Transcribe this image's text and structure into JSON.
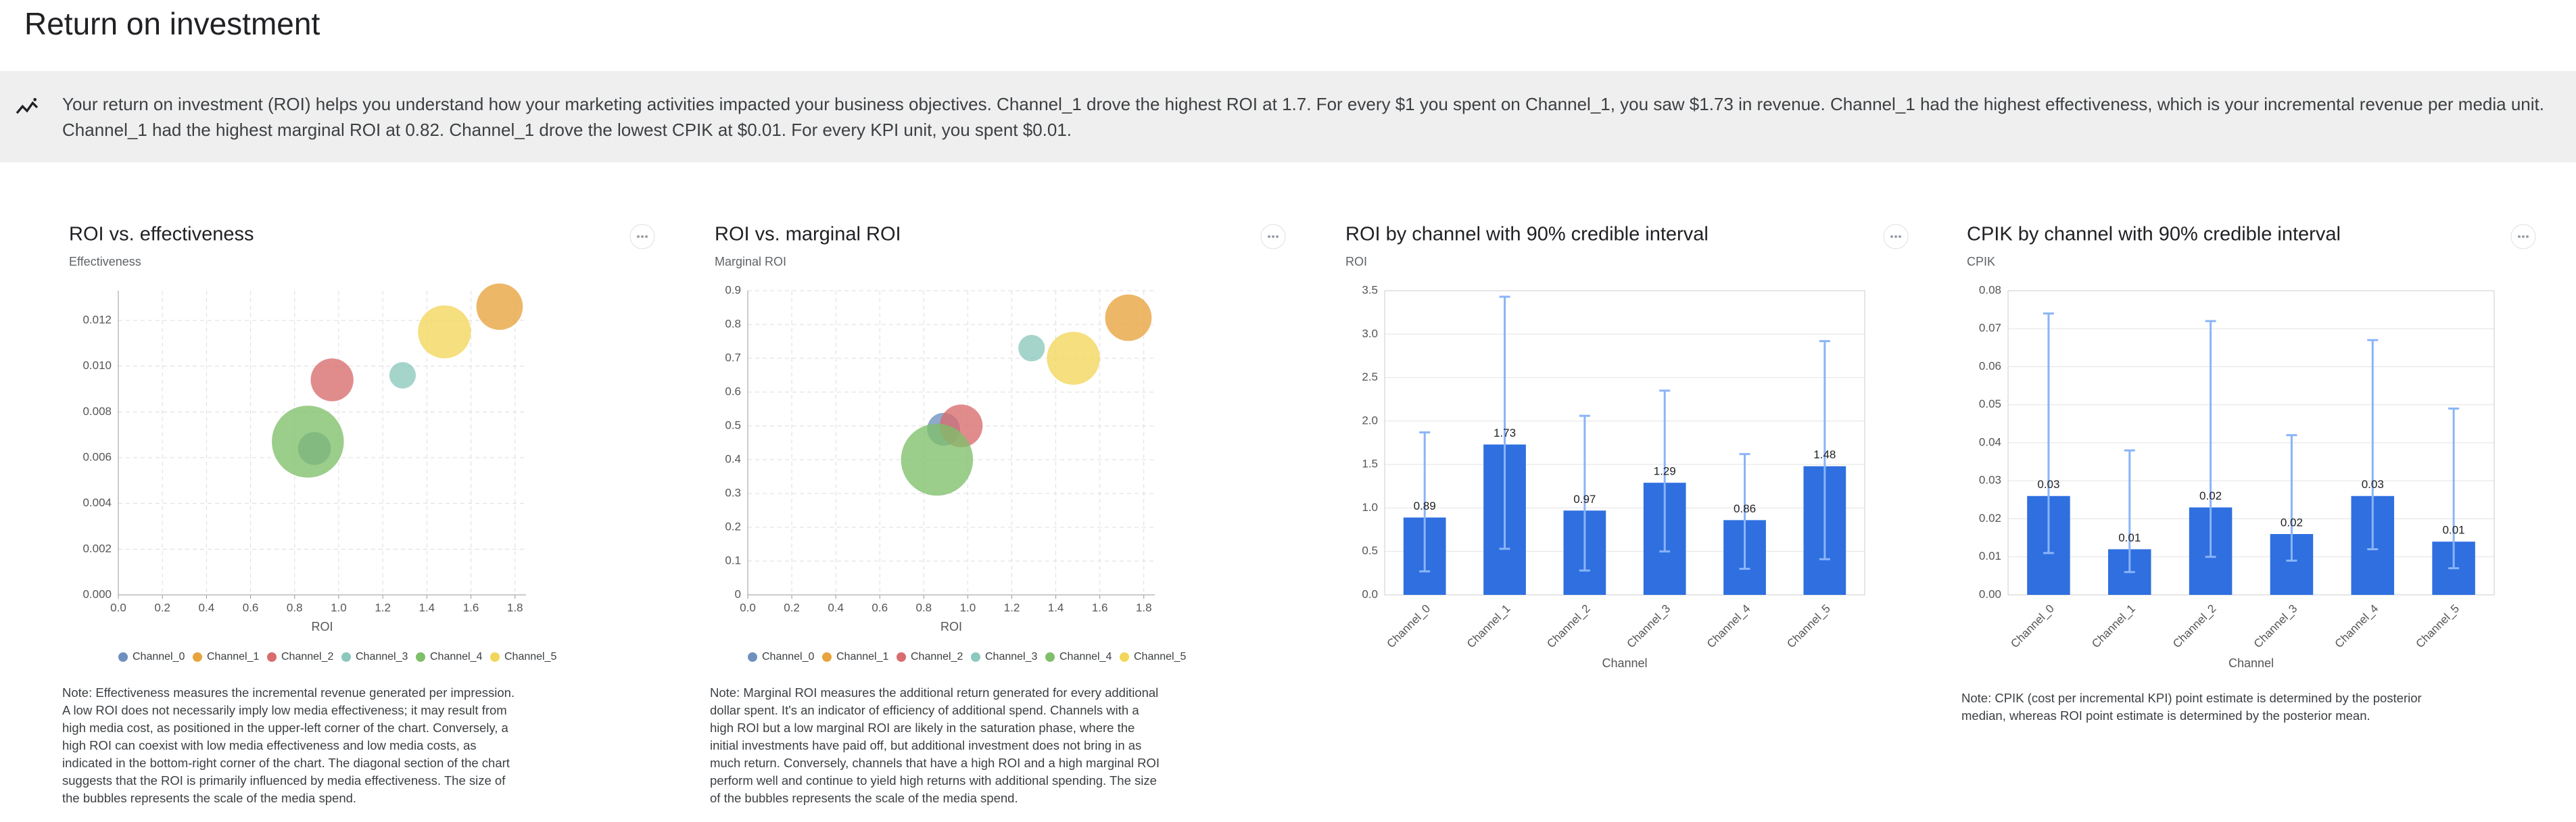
{
  "header": {
    "title": "Return on investment"
  },
  "summary": "Your return on investment (ROI) helps you understand how your marketing activities impacted your business objectives. Channel_1 drove the highest ROI at 1.7. For every $1 you spent on Channel_1, you saw $1.73 in revenue. Channel_1 had the highest effectiveness, which is your incremental revenue per media unit. Channel_1 had the highest marginal ROI at 0.82. Channel_1 drove the lowest CPIK at $0.01. For every KPI unit, you spent $0.01.",
  "chart_data": [
    {
      "type": "bubble",
      "title": "ROI vs. effectiveness",
      "y_label": "Effectiveness",
      "x_label": "ROI",
      "xlim": [
        0,
        1.85
      ],
      "xticks": [
        {
          "value": 0,
          "label": "0.0"
        },
        0.2,
        0.4,
        0.6,
        0.8,
        {
          "value": 1,
          "label": "1.0"
        },
        1.2,
        1.4,
        1.6,
        1.8
      ],
      "ylim": [
        0,
        0.0133
      ],
      "yticks": [
        {
          "value": 0,
          "label": "0.000"
        },
        {
          "value": 0.002,
          "label": "0.002"
        },
        {
          "value": 0.004,
          "label": "0.004"
        },
        {
          "value": 0.006,
          "label": "0.006"
        },
        {
          "value": 0.008,
          "label": "0.008"
        },
        {
          "value": 0.01,
          "label": "0.010"
        },
        {
          "value": 0.012,
          "label": "0.012"
        }
      ],
      "grid": true,
      "series": [
        {
          "name": "Channel_0",
          "color": "#6f8fbf",
          "x": [
            0.89
          ],
          "values": [
            0.0064
          ],
          "sizes": [
            100
          ]
        },
        {
          "name": "Channel_1",
          "color": "#e8a33d",
          "x": [
            1.73
          ],
          "values": [
            0.0126
          ],
          "sizes": [
            200
          ]
        },
        {
          "name": "Channel_2",
          "color": "#d96c6c",
          "x": [
            0.97
          ],
          "values": [
            0.0094
          ],
          "sizes": [
            170
          ]
        },
        {
          "name": "Channel_3",
          "color": "#8cc8bd",
          "x": [
            1.29
          ],
          "values": [
            0.0096
          ],
          "sizes": [
            65
          ]
        },
        {
          "name": "Channel_4",
          "color": "#7fbf6a",
          "x": [
            0.86
          ],
          "values": [
            0.0067
          ],
          "sizes": [
            480
          ]
        },
        {
          "name": "Channel_5",
          "color": "#f2d65a",
          "x": [
            1.48
          ],
          "values": [
            0.0115
          ],
          "sizes": [
            260
          ]
        }
      ],
      "note": "Note: Effectiveness measures the incremental revenue generated per impression. A low ROI does not necessarily imply low media effectiveness; it may result from high media cost, as positioned in the upper-left corner of the chart. Conversely, a high ROI can coexist with low media effectiveness and low media costs, as indicated in the bottom-right corner of the chart. The diagonal section of the chart suggests that the ROI is primarily influenced by media effectiveness. The size of the bubbles represents the scale of the media spend."
    },
    {
      "type": "bubble",
      "title": "ROI vs. marginal ROI",
      "y_label": "Marginal ROI",
      "x_label": "ROI",
      "xlim": [
        0,
        1.85
      ],
      "xticks": [
        {
          "value": 0,
          "label": "0.0"
        },
        0.2,
        0.4,
        0.6,
        0.8,
        {
          "value": 1,
          "label": "1.0"
        },
        1.2,
        1.4,
        1.6,
        1.8
      ],
      "ylim": [
        0,
        0.9
      ],
      "yticks": [
        0,
        0.1,
        0.2,
        0.3,
        0.4,
        0.5,
        0.6,
        0.7,
        0.8,
        0.9
      ],
      "grid": true,
      "series": [
        {
          "name": "Channel_0",
          "color": "#6f8fbf",
          "x": [
            0.89
          ],
          "values": [
            0.49
          ],
          "sizes": [
            100
          ]
        },
        {
          "name": "Channel_1",
          "color": "#e8a33d",
          "x": [
            1.73
          ],
          "values": [
            0.82
          ],
          "sizes": [
            200
          ]
        },
        {
          "name": "Channel_2",
          "color": "#d96c6c",
          "x": [
            0.97
          ],
          "values": [
            0.5
          ],
          "sizes": [
            170
          ]
        },
        {
          "name": "Channel_3",
          "color": "#8cc8bd",
          "x": [
            1.29
          ],
          "values": [
            0.73
          ],
          "sizes": [
            65
          ]
        },
        {
          "name": "Channel_4",
          "color": "#7fbf6a",
          "x": [
            0.86
          ],
          "values": [
            0.4
          ],
          "sizes": [
            480
          ]
        },
        {
          "name": "Channel_5",
          "color": "#f2d65a",
          "x": [
            1.48
          ],
          "values": [
            0.7
          ],
          "sizes": [
            260
          ]
        }
      ],
      "note": "Note: Marginal ROI measures the additional return generated for every additional dollar spent. It's an indicator of efficiency of additional spend. Channels with a high ROI but a low marginal ROI are likely in the saturation phase, where the initial investments have paid off, but additional investment does not bring in as much return. Conversely, channels that have a high ROI and a high marginal ROI perform well and continue to yield high returns with additional spending. The size of the bubbles represents the scale of the media spend."
    },
    {
      "type": "bar",
      "title": "ROI by channel with 90% credible interval",
      "y_label": "ROI",
      "x_label": "Channel",
      "categories": [
        "Channel_0",
        "Channel_1",
        "Channel_2",
        "Channel_3",
        "Channel_4",
        "Channel_5"
      ],
      "values": [
        0.89,
        1.73,
        0.97,
        1.29,
        0.86,
        1.48
      ],
      "lower": [
        0.27,
        0.53,
        0.28,
        0.5,
        0.3,
        0.41
      ],
      "upper": [
        1.87,
        3.43,
        2.06,
        2.35,
        1.62,
        2.92
      ],
      "color": "#2f6fe0",
      "error_color": "#8ab4f8",
      "ylim": [
        0,
        3.5
      ],
      "yticks": [
        {
          "value": 0,
          "label": "0.0"
        },
        0.5,
        {
          "value": 1,
          "label": "1.0"
        },
        1.5,
        {
          "value": 2,
          "label": "2.0"
        },
        2.5,
        {
          "value": 3,
          "label": "3.0"
        },
        3.5
      ],
      "grid": true
    },
    {
      "type": "bar",
      "title": "CPIK by channel with 90% credible interval",
      "y_label": "CPIK",
      "x_label": "Channel",
      "categories": [
        "Channel_0",
        "Channel_1",
        "Channel_2",
        "Channel_3",
        "Channel_4",
        "Channel_5"
      ],
      "values": [
        0.026,
        0.012,
        0.023,
        0.016,
        0.026,
        0.014
      ],
      "value_labels": [
        "0.03",
        "0.01",
        "0.02",
        "0.02",
        "0.03",
        "0.01"
      ],
      "lower": [
        0.011,
        0.006,
        0.01,
        0.009,
        0.012,
        0.007
      ],
      "upper": [
        0.074,
        0.038,
        0.072,
        0.042,
        0.067,
        0.049
      ],
      "color": "#2f6fe0",
      "error_color": "#8ab4f8",
      "ylim": [
        0,
        0.08
      ],
      "yticks": [
        {
          "value": 0,
          "label": "0.00"
        },
        0.01,
        0.02,
        0.03,
        0.04,
        0.05,
        0.06,
        0.07,
        0.08
      ],
      "grid": true,
      "note": "Note: CPIK (cost per incremental KPI) point estimate is determined by the posterior median, whereas ROI point estimate is determined by the posterior mean."
    }
  ]
}
